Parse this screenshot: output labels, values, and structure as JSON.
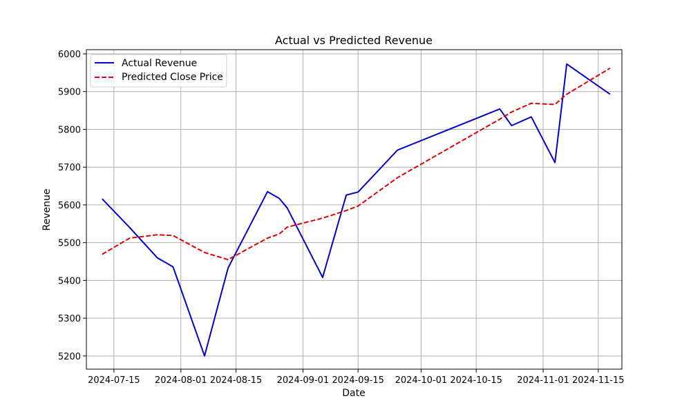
{
  "chart_data": {
    "type": "line",
    "title": "Actual vs Predicted Revenue",
    "xlabel": "Date",
    "ylabel": "Revenue",
    "x_type": "date",
    "xlim": [
      "2024-07-08",
      "2024-11-21"
    ],
    "ylim": [
      5165,
      6011
    ],
    "grid": true,
    "legend_position": "top-left",
    "x_ticks": [
      "2024-07-15",
      "2024-08-01",
      "2024-08-15",
      "2024-09-01",
      "2024-09-15",
      "2024-10-01",
      "2024-10-15",
      "2024-11-01",
      "2024-11-15"
    ],
    "y_ticks": [
      5200,
      5300,
      5400,
      5500,
      5600,
      5700,
      5800,
      5900,
      6000
    ],
    "series": [
      {
        "name": "Actual Revenue",
        "color": "#0000cc",
        "style": "solid",
        "points": [
          {
            "x": "2024-07-12",
            "y": 5616
          },
          {
            "x": "2024-07-19",
            "y": 5540
          },
          {
            "x": "2024-07-26",
            "y": 5460
          },
          {
            "x": "2024-07-30",
            "y": 5436
          },
          {
            "x": "2024-08-07",
            "y": 5200
          },
          {
            "x": "2024-08-13",
            "y": 5433
          },
          {
            "x": "2024-08-23",
            "y": 5635
          },
          {
            "x": "2024-08-26",
            "y": 5617
          },
          {
            "x": "2024-08-28",
            "y": 5592
          },
          {
            "x": "2024-09-06",
            "y": 5408
          },
          {
            "x": "2024-09-12",
            "y": 5626
          },
          {
            "x": "2024-09-15",
            "y": 5634
          },
          {
            "x": "2024-09-25",
            "y": 5745
          },
          {
            "x": "2024-10-21",
            "y": 5854
          },
          {
            "x": "2024-10-24",
            "y": 5810
          },
          {
            "x": "2024-10-29",
            "y": 5833
          },
          {
            "x": "2024-11-04",
            "y": 5712
          },
          {
            "x": "2024-11-07",
            "y": 5973
          },
          {
            "x": "2024-11-18",
            "y": 5893
          }
        ]
      },
      {
        "name": "Predicted Close Price",
        "color": "#dd0000",
        "style": "dashed",
        "points": [
          {
            "x": "2024-07-12",
            "y": 5469
          },
          {
            "x": "2024-07-19",
            "y": 5512
          },
          {
            "x": "2024-07-26",
            "y": 5521
          },
          {
            "x": "2024-07-30",
            "y": 5519
          },
          {
            "x": "2024-08-07",
            "y": 5474
          },
          {
            "x": "2024-08-13",
            "y": 5455
          },
          {
            "x": "2024-08-23",
            "y": 5512
          },
          {
            "x": "2024-08-26",
            "y": 5523
          },
          {
            "x": "2024-08-28",
            "y": 5541
          },
          {
            "x": "2024-09-06",
            "y": 5565
          },
          {
            "x": "2024-09-12",
            "y": 5585
          },
          {
            "x": "2024-09-15",
            "y": 5597
          },
          {
            "x": "2024-09-25",
            "y": 5672
          },
          {
            "x": "2024-10-21",
            "y": 5827
          },
          {
            "x": "2024-10-24",
            "y": 5846
          },
          {
            "x": "2024-10-29",
            "y": 5869
          },
          {
            "x": "2024-11-04",
            "y": 5866
          },
          {
            "x": "2024-11-07",
            "y": 5893
          },
          {
            "x": "2024-11-18",
            "y": 5962
          }
        ]
      }
    ]
  }
}
